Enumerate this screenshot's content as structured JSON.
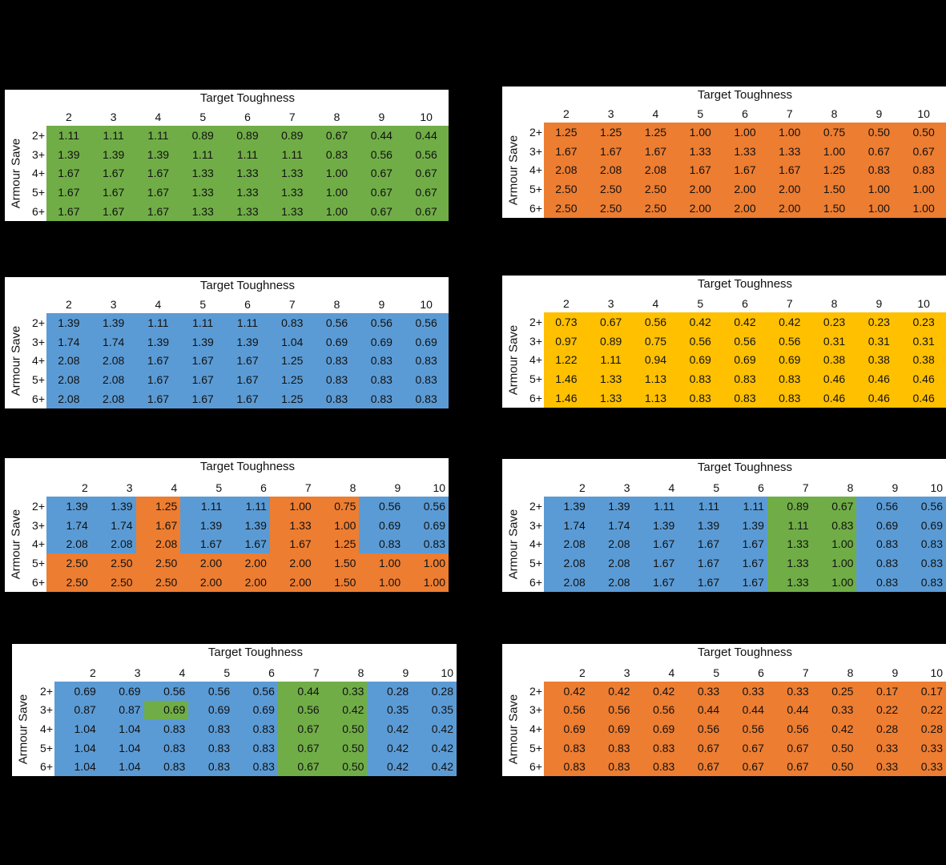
{
  "colors": {
    "green": "#70AD47",
    "orange": "#ED7D31",
    "blue": "#5B9BD5",
    "yellow": "#FFC000"
  },
  "tables": [
    {
      "title": "Target Toughness",
      "ylabel": "Armour Save",
      "columns": [
        "2",
        "3",
        "4",
        "5",
        "6",
        "7",
        "8",
        "9",
        "10"
      ],
      "rows": [
        "2+",
        "3+",
        "4+",
        "5+",
        "6+"
      ],
      "values": [
        [
          "1.11",
          "1.11",
          "1.11",
          "0.89",
          "0.89",
          "0.89",
          "0.67",
          "0.44",
          "0.44"
        ],
        [
          "1.39",
          "1.39",
          "1.39",
          "1.11",
          "1.11",
          "1.11",
          "0.83",
          "0.56",
          "0.56"
        ],
        [
          "1.67",
          "1.67",
          "1.67",
          "1.33",
          "1.33",
          "1.33",
          "1.00",
          "0.67",
          "0.67"
        ],
        [
          "1.67",
          "1.67",
          "1.67",
          "1.33",
          "1.33",
          "1.33",
          "1.00",
          "0.67",
          "0.67"
        ],
        [
          "1.67",
          "1.67",
          "1.67",
          "1.33",
          "1.33",
          "1.33",
          "1.00",
          "0.67",
          "0.67"
        ]
      ],
      "cell_colors": [
        [
          "green",
          "green",
          "green",
          "green",
          "green",
          "green",
          "green",
          "green",
          "green"
        ],
        [
          "green",
          "green",
          "green",
          "green",
          "green",
          "green",
          "green",
          "green",
          "green"
        ],
        [
          "green",
          "green",
          "green",
          "green",
          "green",
          "green",
          "green",
          "green",
          "green"
        ],
        [
          "green",
          "green",
          "green",
          "green",
          "green",
          "green",
          "green",
          "green",
          "green"
        ],
        [
          "green",
          "green",
          "green",
          "green",
          "green",
          "green",
          "green",
          "green",
          "green"
        ]
      ]
    },
    {
      "title": "Target Toughness",
      "ylabel": "Armour Save",
      "columns": [
        "2",
        "3",
        "4",
        "5",
        "6",
        "7",
        "8",
        "9",
        "10"
      ],
      "rows": [
        "2+",
        "3+",
        "4+",
        "5+",
        "6+"
      ],
      "values": [
        [
          "1.25",
          "1.25",
          "1.25",
          "1.00",
          "1.00",
          "1.00",
          "0.75",
          "0.50",
          "0.50"
        ],
        [
          "1.67",
          "1.67",
          "1.67",
          "1.33",
          "1.33",
          "1.33",
          "1.00",
          "0.67",
          "0.67"
        ],
        [
          "2.08",
          "2.08",
          "2.08",
          "1.67",
          "1.67",
          "1.67",
          "1.25",
          "0.83",
          "0.83"
        ],
        [
          "2.50",
          "2.50",
          "2.50",
          "2.00",
          "2.00",
          "2.00",
          "1.50",
          "1.00",
          "1.00"
        ],
        [
          "2.50",
          "2.50",
          "2.50",
          "2.00",
          "2.00",
          "2.00",
          "1.50",
          "1.00",
          "1.00"
        ]
      ],
      "cell_colors": [
        [
          "orange",
          "orange",
          "orange",
          "orange",
          "orange",
          "orange",
          "orange",
          "orange",
          "orange"
        ],
        [
          "orange",
          "orange",
          "orange",
          "orange",
          "orange",
          "orange",
          "orange",
          "orange",
          "orange"
        ],
        [
          "orange",
          "orange",
          "orange",
          "orange",
          "orange",
          "orange",
          "orange",
          "orange",
          "orange"
        ],
        [
          "orange",
          "orange",
          "orange",
          "orange",
          "orange",
          "orange",
          "orange",
          "orange",
          "orange"
        ],
        [
          "orange",
          "orange",
          "orange",
          "orange",
          "orange",
          "orange",
          "orange",
          "orange",
          "orange"
        ]
      ]
    },
    {
      "title": "Target Toughness",
      "ylabel": "Armour Save",
      "columns": [
        "2",
        "3",
        "4",
        "5",
        "6",
        "7",
        "8",
        "9",
        "10"
      ],
      "rows": [
        "2+",
        "3+",
        "4+",
        "5+",
        "6+"
      ],
      "values": [
        [
          "1.39",
          "1.39",
          "1.11",
          "1.11",
          "1.11",
          "0.83",
          "0.56",
          "0.56",
          "0.56"
        ],
        [
          "1.74",
          "1.74",
          "1.39",
          "1.39",
          "1.39",
          "1.04",
          "0.69",
          "0.69",
          "0.69"
        ],
        [
          "2.08",
          "2.08",
          "1.67",
          "1.67",
          "1.67",
          "1.25",
          "0.83",
          "0.83",
          "0.83"
        ],
        [
          "2.08",
          "2.08",
          "1.67",
          "1.67",
          "1.67",
          "1.25",
          "0.83",
          "0.83",
          "0.83"
        ],
        [
          "2.08",
          "2.08",
          "1.67",
          "1.67",
          "1.67",
          "1.25",
          "0.83",
          "0.83",
          "0.83"
        ]
      ],
      "cell_colors": [
        [
          "blue",
          "blue",
          "blue",
          "blue",
          "blue",
          "blue",
          "blue",
          "blue",
          "blue"
        ],
        [
          "blue",
          "blue",
          "blue",
          "blue",
          "blue",
          "blue",
          "blue",
          "blue",
          "blue"
        ],
        [
          "blue",
          "blue",
          "blue",
          "blue",
          "blue",
          "blue",
          "blue",
          "blue",
          "blue"
        ],
        [
          "blue",
          "blue",
          "blue",
          "blue",
          "blue",
          "blue",
          "blue",
          "blue",
          "blue"
        ],
        [
          "blue",
          "blue",
          "blue",
          "blue",
          "blue",
          "blue",
          "blue",
          "blue",
          "blue"
        ]
      ]
    },
    {
      "title": "Target Toughness",
      "ylabel": "Armour Save",
      "columns": [
        "2",
        "3",
        "4",
        "5",
        "6",
        "7",
        "8",
        "9",
        "10"
      ],
      "rows": [
        "2+",
        "3+",
        "4+",
        "5+",
        "6+"
      ],
      "values": [
        [
          "0.73",
          "0.67",
          "0.56",
          "0.42",
          "0.42",
          "0.42",
          "0.23",
          "0.23",
          "0.23"
        ],
        [
          "0.97",
          "0.89",
          "0.75",
          "0.56",
          "0.56",
          "0.56",
          "0.31",
          "0.31",
          "0.31"
        ],
        [
          "1.22",
          "1.11",
          "0.94",
          "0.69",
          "0.69",
          "0.69",
          "0.38",
          "0.38",
          "0.38"
        ],
        [
          "1.46",
          "1.33",
          "1.13",
          "0.83",
          "0.83",
          "0.83",
          "0.46",
          "0.46",
          "0.46"
        ],
        [
          "1.46",
          "1.33",
          "1.13",
          "0.83",
          "0.83",
          "0.83",
          "0.46",
          "0.46",
          "0.46"
        ]
      ],
      "cell_colors": [
        [
          "yellow",
          "yellow",
          "yellow",
          "yellow",
          "yellow",
          "yellow",
          "yellow",
          "yellow",
          "yellow"
        ],
        [
          "yellow",
          "yellow",
          "yellow",
          "yellow",
          "yellow",
          "yellow",
          "yellow",
          "yellow",
          "yellow"
        ],
        [
          "yellow",
          "yellow",
          "yellow",
          "yellow",
          "yellow",
          "yellow",
          "yellow",
          "yellow",
          "yellow"
        ],
        [
          "yellow",
          "yellow",
          "yellow",
          "yellow",
          "yellow",
          "yellow",
          "yellow",
          "yellow",
          "yellow"
        ],
        [
          "yellow",
          "yellow",
          "yellow",
          "yellow",
          "yellow",
          "yellow",
          "yellow",
          "yellow",
          "yellow"
        ]
      ]
    },
    {
      "title": "Target Toughness",
      "ylabel": "Armour Save",
      "columns": [
        "2",
        "3",
        "4",
        "5",
        "6",
        "7",
        "8",
        "9",
        "10"
      ],
      "rows": [
        "2+",
        "3+",
        "4+",
        "5+",
        "6+"
      ],
      "values": [
        [
          "1.39",
          "1.39",
          "1.25",
          "1.11",
          "1.11",
          "1.00",
          "0.75",
          "0.56",
          "0.56"
        ],
        [
          "1.74",
          "1.74",
          "1.67",
          "1.39",
          "1.39",
          "1.33",
          "1.00",
          "0.69",
          "0.69"
        ],
        [
          "2.08",
          "2.08",
          "2.08",
          "1.67",
          "1.67",
          "1.67",
          "1.25",
          "0.83",
          "0.83"
        ],
        [
          "2.50",
          "2.50",
          "2.50",
          "2.00",
          "2.00",
          "2.00",
          "1.50",
          "1.00",
          "1.00"
        ],
        [
          "2.50",
          "2.50",
          "2.50",
          "2.00",
          "2.00",
          "2.00",
          "1.50",
          "1.00",
          "1.00"
        ]
      ],
      "cell_colors": [
        [
          "blue",
          "blue",
          "orange",
          "blue",
          "blue",
          "orange",
          "orange",
          "blue",
          "blue"
        ],
        [
          "blue",
          "blue",
          "orange",
          "blue",
          "blue",
          "orange",
          "orange",
          "blue",
          "blue"
        ],
        [
          "blue",
          "blue",
          "orange",
          "blue",
          "blue",
          "orange",
          "orange",
          "blue",
          "blue"
        ],
        [
          "orange",
          "orange",
          "orange",
          "orange",
          "orange",
          "orange",
          "orange",
          "orange",
          "orange"
        ],
        [
          "orange",
          "orange",
          "orange",
          "orange",
          "orange",
          "orange",
          "orange",
          "orange",
          "orange"
        ]
      ]
    },
    {
      "title": "Target Toughness",
      "ylabel": "Armour Save",
      "columns": [
        "2",
        "3",
        "4",
        "5",
        "6",
        "7",
        "8",
        "9",
        "10"
      ],
      "rows": [
        "2+",
        "3+",
        "4+",
        "5+",
        "6+"
      ],
      "values": [
        [
          "1.39",
          "1.39",
          "1.11",
          "1.11",
          "1.11",
          "0.89",
          "0.67",
          "0.56",
          "0.56"
        ],
        [
          "1.74",
          "1.74",
          "1.39",
          "1.39",
          "1.39",
          "1.11",
          "0.83",
          "0.69",
          "0.69"
        ],
        [
          "2.08",
          "2.08",
          "1.67",
          "1.67",
          "1.67",
          "1.33",
          "1.00",
          "0.83",
          "0.83"
        ],
        [
          "2.08",
          "2.08",
          "1.67",
          "1.67",
          "1.67",
          "1.33",
          "1.00",
          "0.83",
          "0.83"
        ],
        [
          "2.08",
          "2.08",
          "1.67",
          "1.67",
          "1.67",
          "1.33",
          "1.00",
          "0.83",
          "0.83"
        ]
      ],
      "cell_colors": [
        [
          "blue",
          "blue",
          "blue",
          "blue",
          "blue",
          "green",
          "green",
          "blue",
          "blue"
        ],
        [
          "blue",
          "blue",
          "blue",
          "blue",
          "blue",
          "green",
          "green",
          "blue",
          "blue"
        ],
        [
          "blue",
          "blue",
          "blue",
          "blue",
          "blue",
          "green",
          "green",
          "blue",
          "blue"
        ],
        [
          "blue",
          "blue",
          "blue",
          "blue",
          "blue",
          "green",
          "green",
          "blue",
          "blue"
        ],
        [
          "blue",
          "blue",
          "blue",
          "blue",
          "blue",
          "green",
          "green",
          "blue",
          "blue"
        ]
      ]
    },
    {
      "title": "Target Toughness",
      "ylabel": "Armour Save",
      "columns": [
        "2",
        "3",
        "4",
        "5",
        "6",
        "7",
        "8",
        "9",
        "10"
      ],
      "rows": [
        "2+",
        "3+",
        "4+",
        "5+",
        "6+"
      ],
      "values": [
        [
          "0.69",
          "0.69",
          "0.56",
          "0.56",
          "0.56",
          "0.44",
          "0.33",
          "0.28",
          "0.28"
        ],
        [
          "0.87",
          "0.87",
          "0.69",
          "0.69",
          "0.69",
          "0.56",
          "0.42",
          "0.35",
          "0.35"
        ],
        [
          "1.04",
          "1.04",
          "0.83",
          "0.83",
          "0.83",
          "0.67",
          "0.50",
          "0.42",
          "0.42"
        ],
        [
          "1.04",
          "1.04",
          "0.83",
          "0.83",
          "0.83",
          "0.67",
          "0.50",
          "0.42",
          "0.42"
        ],
        [
          "1.04",
          "1.04",
          "0.83",
          "0.83",
          "0.83",
          "0.67",
          "0.50",
          "0.42",
          "0.42"
        ]
      ],
      "cell_colors": [
        [
          "blue",
          "blue",
          "blue",
          "blue",
          "blue",
          "green",
          "green",
          "blue",
          "blue"
        ],
        [
          "blue",
          "blue",
          "green",
          "blue",
          "blue",
          "green",
          "green",
          "blue",
          "blue"
        ],
        [
          "blue",
          "blue",
          "blue",
          "blue",
          "blue",
          "green",
          "green",
          "blue",
          "blue"
        ],
        [
          "blue",
          "blue",
          "blue",
          "blue",
          "blue",
          "green",
          "green",
          "blue",
          "blue"
        ],
        [
          "blue",
          "blue",
          "blue",
          "blue",
          "blue",
          "green",
          "green",
          "blue",
          "blue"
        ]
      ]
    },
    {
      "title": "Target Toughness",
      "ylabel": "Armour Save",
      "columns": [
        "2",
        "3",
        "4",
        "5",
        "6",
        "7",
        "8",
        "9",
        "10"
      ],
      "rows": [
        "2+",
        "3+",
        "4+",
        "5+",
        "6+"
      ],
      "values": [
        [
          "0.42",
          "0.42",
          "0.42",
          "0.33",
          "0.33",
          "0.33",
          "0.25",
          "0.17",
          "0.17"
        ],
        [
          "0.56",
          "0.56",
          "0.56",
          "0.44",
          "0.44",
          "0.44",
          "0.33",
          "0.22",
          "0.22"
        ],
        [
          "0.69",
          "0.69",
          "0.69",
          "0.56",
          "0.56",
          "0.56",
          "0.42",
          "0.28",
          "0.28"
        ],
        [
          "0.83",
          "0.83",
          "0.83",
          "0.67",
          "0.67",
          "0.67",
          "0.50",
          "0.33",
          "0.33"
        ],
        [
          "0.83",
          "0.83",
          "0.83",
          "0.67",
          "0.67",
          "0.67",
          "0.50",
          "0.33",
          "0.33"
        ]
      ],
      "cell_colors": [
        [
          "orange",
          "orange",
          "orange",
          "orange",
          "orange",
          "orange",
          "orange",
          "orange",
          "orange"
        ],
        [
          "orange",
          "orange",
          "orange",
          "orange",
          "orange",
          "orange",
          "orange",
          "orange",
          "orange"
        ],
        [
          "orange",
          "orange",
          "orange",
          "orange",
          "orange",
          "orange",
          "orange",
          "orange",
          "orange"
        ],
        [
          "orange",
          "orange",
          "orange",
          "orange",
          "orange",
          "orange",
          "orange",
          "orange",
          "orange"
        ],
        [
          "orange",
          "orange",
          "orange",
          "orange",
          "orange",
          "orange",
          "orange",
          "orange",
          "orange"
        ]
      ]
    }
  ]
}
